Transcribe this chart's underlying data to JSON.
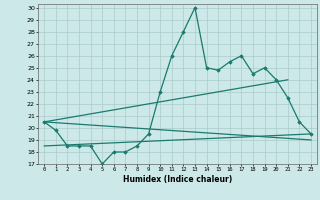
{
  "x": [
    0,
    1,
    2,
    3,
    4,
    5,
    6,
    7,
    8,
    9,
    10,
    11,
    12,
    13,
    14,
    15,
    16,
    17,
    18,
    19,
    20,
    21,
    22,
    23
  ],
  "line_main": [
    20.5,
    19.8,
    18.5,
    18.5,
    18.5,
    17.0,
    18.0,
    18.0,
    18.5,
    19.5,
    23.0,
    26.0,
    28.0,
    30.0,
    25.0,
    24.8,
    25.5,
    26.0,
    24.5,
    25.0,
    24.0,
    22.5,
    20.5,
    19.5
  ],
  "line_trend1_x": [
    0,
    23
  ],
  "line_trend1_y": [
    20.5,
    19.0
  ],
  "line_trend2_x": [
    0,
    21
  ],
  "line_trend2_y": [
    20.5,
    24.0
  ],
  "line_trend3_x": [
    0,
    23
  ],
  "line_trend3_y": [
    18.5,
    19.5
  ],
  "color": "#1a7a6e",
  "bg_color": "#cce8e8",
  "grid_color": "#aacccc",
  "xlabel": "Humidex (Indice chaleur)",
  "ylim": [
    17,
    30
  ],
  "xlim": [
    -0.5,
    23.5
  ],
  "yticks": [
    17,
    18,
    19,
    20,
    21,
    22,
    23,
    24,
    25,
    26,
    27,
    28,
    29,
    30
  ],
  "xticks": [
    0,
    1,
    2,
    3,
    4,
    5,
    6,
    7,
    8,
    9,
    10,
    11,
    12,
    13,
    14,
    15,
    16,
    17,
    18,
    19,
    20,
    21,
    22,
    23
  ]
}
